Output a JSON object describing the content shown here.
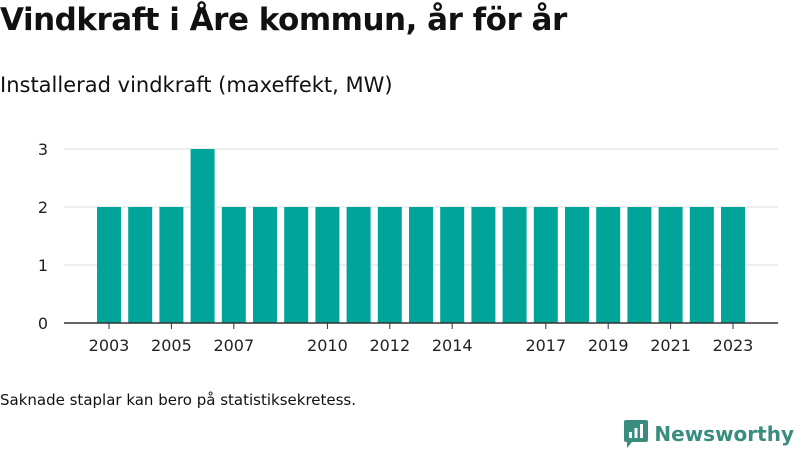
{
  "page": {
    "title": "Vindkraft i Åre kommun, år för år",
    "subtitle": "Installerad vindkraft (maxeffekt, MW)",
    "footnote": "Saknade staplar kan bero på statistiksekretess.",
    "brand": "Newsworthy"
  },
  "colors": {
    "bar": "#00a499",
    "grid": "#dddddd",
    "axis": "#333333",
    "brand": "#3a8d7e"
  },
  "chart_data": {
    "type": "bar",
    "title": "",
    "xlabel": "",
    "ylabel": "",
    "x": [
      2003,
      2004,
      2005,
      2006,
      2007,
      2008,
      2009,
      2010,
      2011,
      2012,
      2013,
      2014,
      2015,
      2016,
      2017,
      2018,
      2019,
      2020,
      2021,
      2022,
      2023
    ],
    "values": [
      2,
      2,
      2,
      3,
      2,
      2,
      2,
      2,
      2,
      2,
      2,
      2,
      2,
      2,
      2,
      2,
      2,
      2,
      2,
      2,
      2
    ],
    "x_tick_labels": [
      2003,
      2005,
      2007,
      2010,
      2012,
      2014,
      2017,
      2019,
      2021,
      2023
    ],
    "y_ticks": [
      0,
      1,
      2,
      3
    ],
    "ylim": [
      0,
      3
    ],
    "grid": true,
    "legend": "none"
  }
}
